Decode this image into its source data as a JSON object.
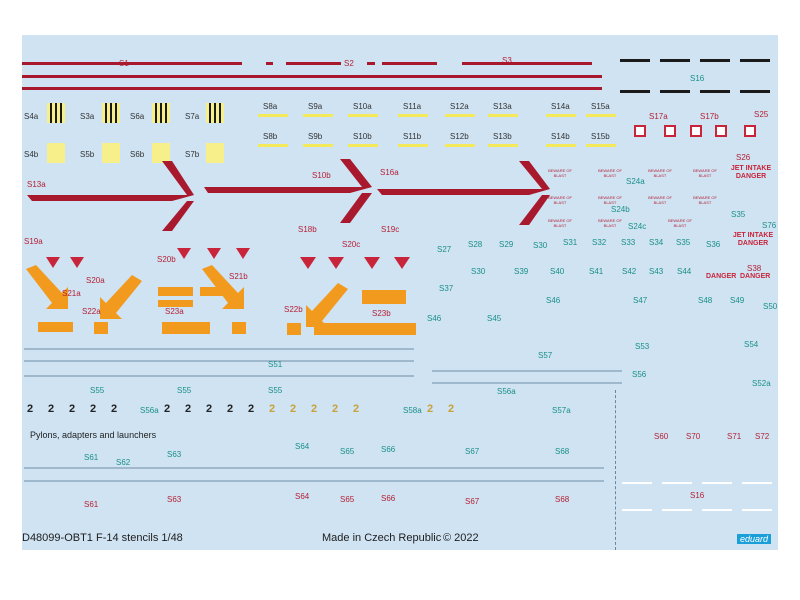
{
  "sheet": {
    "title": "D48099-OBT1 F-14 stencils 1/48",
    "made_in": "Made in Czech Republic",
    "copyright": "© 2022",
    "brand": "eduard",
    "section_label": "Pylons, adapters and launchers"
  },
  "labels": {
    "S1": "S1",
    "S2": "S2",
    "S3": "S3",
    "S16": "S16",
    "S16b": "S16",
    "S4a": "S4a",
    "S3a": "S3a",
    "S6a": "S6a",
    "S7a": "S7a",
    "S4b": "S4b",
    "S5b": "S5b",
    "S6b": "S6b",
    "S7b": "S7b",
    "S8a": "S8a",
    "S9a": "S9a",
    "S10a": "S10a",
    "S11a": "S11a",
    "S12a": "S12a",
    "S13a": "S13a",
    "S14a": "S14a",
    "S15a": "S15a",
    "S8b": "S8b",
    "S9b": "S9b",
    "S10b": "S10b",
    "S11b": "S11b",
    "S12b": "S12b",
    "S13b": "S13b",
    "S14b": "S14b",
    "S15b": "S15b",
    "S17a": "S17a",
    "S17b": "S17b",
    "S25": "S25",
    "S26": "S26",
    "S13aL": "S13a",
    "S19a": "S19a",
    "S10bL": "S10b",
    "S18b": "S18b",
    "S16a": "S16a",
    "S19c": "S19c",
    "S20a": "S20a",
    "S20b": "S20b",
    "S21a": "S21a",
    "S21b": "S21b",
    "S20c": "S20c",
    "S22a": "S22a",
    "S22b": "S22b",
    "S23a": "S23a",
    "S23b": "S23b",
    "S24a": "S24a",
    "S24b": "S24b",
    "S24c": "S24c",
    "S35": "S35",
    "S76": "S76",
    "S27": "S27",
    "S28": "S28",
    "S29": "S29",
    "S30": "S30",
    "S31": "S31",
    "S32": "S32",
    "S33": "S33",
    "S34": "S34",
    "S35b": "S35",
    "S36": "S36",
    "S30b": "S30",
    "S39": "S39",
    "S40": "S40",
    "S41": "S41",
    "S42": "S42",
    "S43": "S43",
    "S44": "S44",
    "S37": "S37",
    "S46": "S46",
    "S47": "S47",
    "S48": "S48",
    "S49": "S49",
    "S50": "S50",
    "S38": "S38",
    "S45": "S45",
    "S46b": "S46",
    "S53": "S53",
    "S54": "S54",
    "S51": "S51",
    "S57": "S57",
    "S56": "S56",
    "S52a": "S52a",
    "S55": "S55",
    "S55b": "S55",
    "S56a": "S56a",
    "S55c": "S55",
    "S56a2": "S56a",
    "S58a": "S58a",
    "S57a": "S57a",
    "S61": "S61",
    "S62": "S62",
    "S63": "S63",
    "S64": "S64",
    "S65": "S65",
    "S66": "S66",
    "S67": "S67",
    "S68": "S68",
    "S61b": "S61",
    "S63b": "S63",
    "S64b": "S64",
    "S65b": "S65",
    "S66b": "S66",
    "S67b": "S67",
    "S68b": "S68",
    "S60": "S60",
    "S70": "S70",
    "S71": "S71",
    "S72": "S72",
    "S16c": "S16"
  },
  "warnings": {
    "jet_intake_1": "JET INTAKE DANGER",
    "jet_intake_2": "JET INTAKE DANGER",
    "danger": "DANGER",
    "beware": "BEWARE OF BLAST"
  },
  "digits": {
    "two": "2"
  },
  "colors": {
    "sheet_bg": "#cfe3f3",
    "stripe_red": "#a8192d",
    "label_teal": "#1a8f88",
    "label_red": "#b51f32",
    "yellow": "#f6ef8a",
    "orange": "#f29a1e"
  }
}
